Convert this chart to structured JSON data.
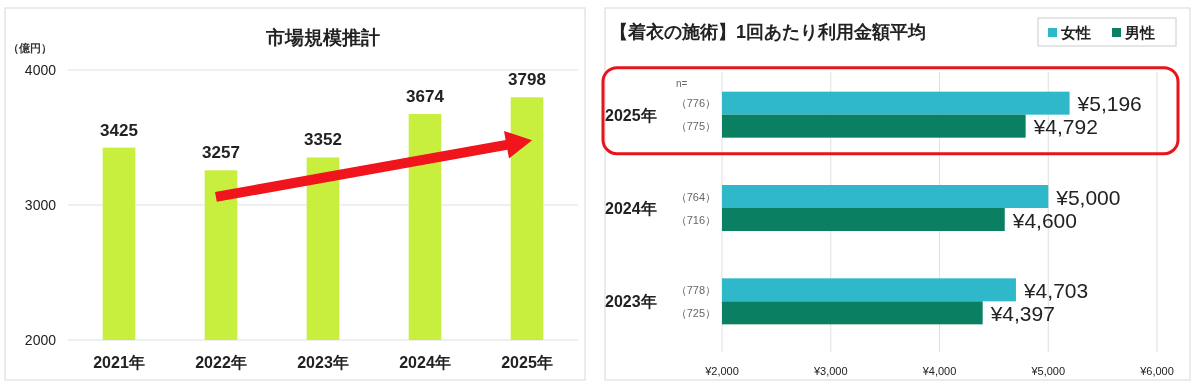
{
  "chart_data": [
    {
      "type": "bar",
      "title": "市場規模推計",
      "ylabel": "（億円）",
      "categories": [
        "2021年",
        "2022年",
        "2023年",
        "2024年",
        "2025年"
      ],
      "values": [
        3425,
        3257,
        3352,
        3674,
        3798
      ],
      "color": "#c8ef3e",
      "ylim": [
        2000,
        4000
      ],
      "yticks": [
        2000,
        3000,
        4000
      ],
      "grid": "y",
      "data_labels": true
    },
    {
      "type": "bar",
      "orientation": "horizontal",
      "title": "【着衣の施術】1回あたり利用金額平均",
      "categories": [
        "2025年",
        "2024年",
        "2023年"
      ],
      "series": [
        {
          "name": "女性",
          "color": "#2fb8c9",
          "values": [
            5196,
            5000,
            4703
          ],
          "value_labels": [
            "¥5,196",
            "¥5,000",
            "¥4,703"
          ]
        },
        {
          "name": "男性",
          "color": "#0b7f62",
          "values": [
            4792,
            4600,
            4397
          ],
          "value_labels": [
            "¥4,792",
            "¥4,600",
            "¥4,397"
          ]
        }
      ],
      "xlim": [
        2000,
        6000
      ],
      "xticks": [
        {
          "value": 2000,
          "label": "¥2,000"
        },
        {
          "value": 3000,
          "label": "¥3,000"
        },
        {
          "value": 4000,
          "label": "¥4,000"
        },
        {
          "value": 5000,
          "label": "¥5,000"
        },
        {
          "value": 6000,
          "label": "¥6,000"
        }
      ],
      "grid": "x",
      "legend": "top right",
      "annotations": [
        "n=",
        "（776）",
        "（775）",
        "（764）",
        "（716）",
        "（778）",
        "（725）"
      ]
    }
  ]
}
